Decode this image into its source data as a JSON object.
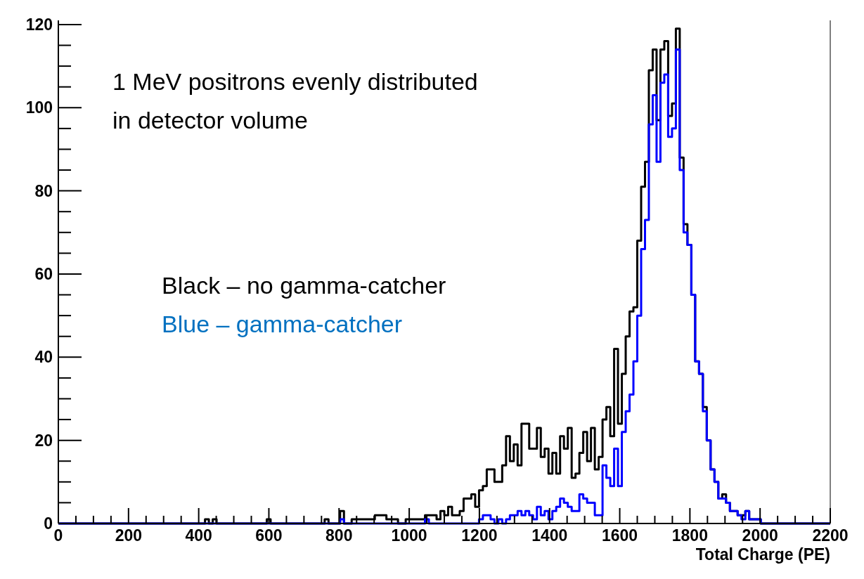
{
  "chart_data": {
    "type": "histogram",
    "xlabel": "Total Charge (PE)",
    "annotations": [
      "1 MeV positrons evenly distributed\nin detector volume",
      "Black – no gamma-catcher",
      "Blue – gamma-catcher"
    ],
    "bins": [
      0,
      418,
      429,
      440,
      451,
      594,
      605,
      759,
      770,
      803,
      814,
      825,
      836,
      847,
      858,
      869,
      880,
      891,
      902,
      913,
      924,
      935,
      946,
      957,
      968,
      979,
      990,
      1001,
      1012,
      1023,
      1034,
      1045,
      1056,
      1067,
      1078,
      1089,
      1100,
      1111,
      1122,
      1133,
      1144,
      1155,
      1166,
      1177,
      1188,
      1199,
      1210,
      1221,
      1232,
      1243,
      1254,
      1265,
      1276,
      1287,
      1298,
      1309,
      1320,
      1331,
      1342,
      1353,
      1364,
      1375,
      1386,
      1397,
      1408,
      1419,
      1430,
      1441,
      1452,
      1463,
      1474,
      1485,
      1496,
      1507,
      1518,
      1529,
      1540,
      1551,
      1562,
      1573,
      1584,
      1595,
      1606,
      1617,
      1628,
      1639,
      1650,
      1661,
      1672,
      1683,
      1694,
      1705,
      1716,
      1727,
      1738,
      1749,
      1760,
      1771,
      1782,
      1793,
      1804,
      1815,
      1826,
      1837,
      1848,
      1859,
      1870,
      1881,
      1892,
      1903,
      1914,
      1925,
      1936,
      1947,
      1958,
      1969,
      1980,
      1991,
      2002,
      2200
    ],
    "series": [
      {
        "color": "#000000",
        "values": [
          0,
          1,
          0,
          1,
          0,
          1,
          0,
          1,
          0,
          3,
          0,
          0,
          1,
          1,
          1,
          1,
          1,
          1,
          2,
          2,
          2,
          1,
          1,
          1,
          0,
          0,
          1,
          1,
          1,
          1,
          1,
          2,
          2,
          2,
          1,
          3,
          2,
          4,
          2,
          2,
          3,
          6,
          6,
          7,
          4,
          8,
          9,
          13,
          13,
          10,
          10,
          14,
          21,
          15,
          19,
          14,
          24,
          24,
          18,
          18,
          23,
          16,
          18,
          12,
          17,
          12,
          21,
          18,
          23,
          11,
          12,
          17,
          22,
          15,
          23,
          13,
          16,
          25,
          28,
          21,
          42,
          24,
          36,
          45,
          51,
          52,
          68,
          81,
          87,
          109,
          114,
          97,
          114,
          116,
          98,
          101,
          119,
          88,
          72,
          67,
          55,
          39,
          36,
          28,
          20,
          13,
          10,
          6,
          7,
          5,
          3,
          3,
          2,
          2,
          3,
          1,
          1,
          1,
          0
        ]
      },
      {
        "color": "#0000ff",
        "values": [
          0,
          0,
          0,
          0,
          0,
          0,
          0,
          0,
          0,
          1,
          0,
          0,
          0,
          0,
          0,
          0,
          0,
          0,
          0,
          0,
          0,
          0,
          0,
          0,
          0,
          0,
          0,
          0,
          0,
          0,
          0,
          1,
          0,
          0,
          0,
          0,
          0,
          0,
          0,
          0,
          0,
          0,
          0,
          0,
          0,
          1,
          2,
          2,
          1,
          0,
          1,
          0,
          1,
          2,
          2,
          3,
          2,
          3,
          2,
          1,
          4,
          2,
          3,
          1,
          3,
          4,
          6,
          5,
          4,
          3,
          3,
          7,
          6,
          5,
          5,
          2,
          2,
          14,
          11,
          9,
          18,
          9,
          22,
          27,
          31,
          39,
          50,
          66,
          73,
          96,
          103,
          87,
          106,
          108,
          93,
          95,
          114,
          85,
          70,
          67,
          55,
          39,
          36,
          27,
          20,
          13,
          10,
          6,
          6,
          5,
          3,
          3,
          2,
          1,
          3,
          1,
          1,
          1,
          0
        ]
      }
    ],
    "xlim": [
      0,
      2200
    ],
    "ylim": [
      0,
      121
    ],
    "xticks": [
      0,
      200,
      400,
      600,
      800,
      1000,
      1200,
      1400,
      1600,
      1800,
      2000,
      2200
    ],
    "yticks": [
      0,
      20,
      40,
      60,
      80,
      100,
      120
    ],
    "grid": false
  }
}
